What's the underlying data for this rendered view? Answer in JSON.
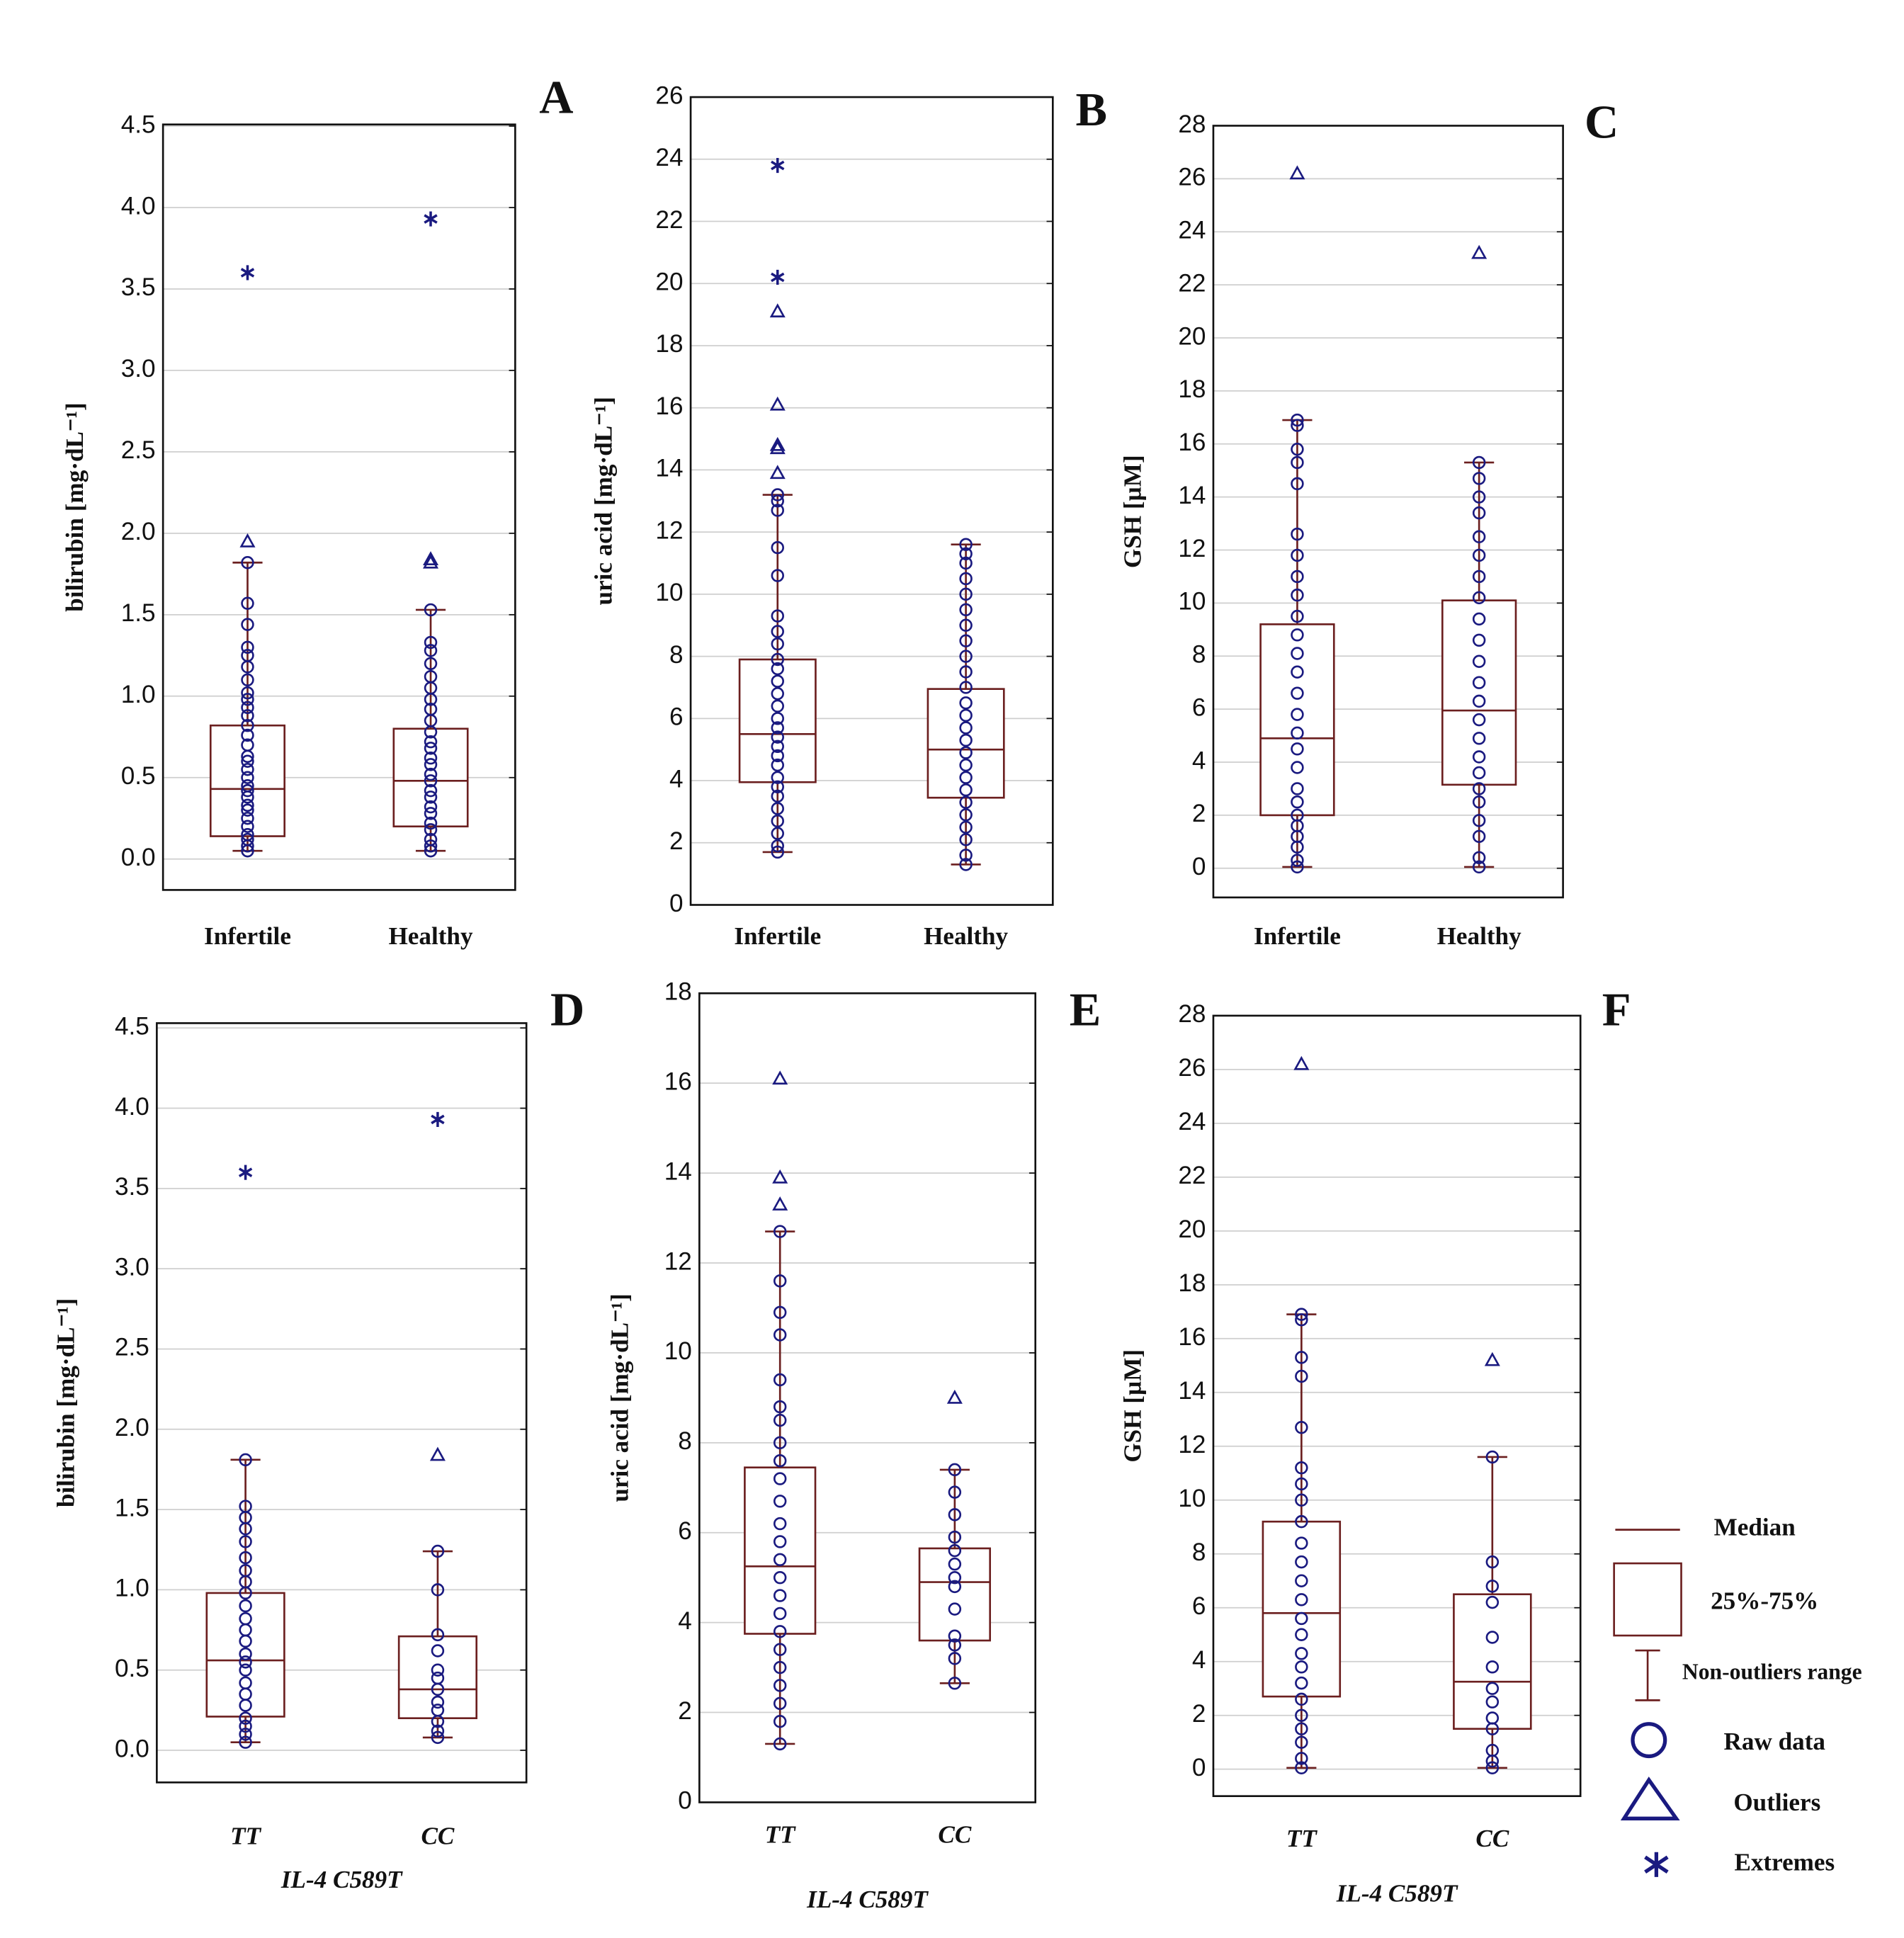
{
  "chart_data": [
    {
      "type": "box",
      "panel": "A",
      "ylabel": "bilirubin [mg·dL⁻¹]",
      "categories": [
        "Infertile",
        "Healthy"
      ],
      "ylim": [
        -0.19,
        4.51
      ],
      "yticks": [
        {
          "value": 0,
          "label": "0.0"
        },
        {
          "value": 0.5,
          "label": "0.5"
        },
        {
          "value": 1,
          "label": "1.0"
        },
        {
          "value": 1.5,
          "label": "1.5"
        },
        {
          "value": 2,
          "label": "2.0"
        },
        {
          "value": 2.5,
          "label": "2.5"
        },
        {
          "value": 3,
          "label": "3.0"
        },
        {
          "value": 3.5,
          "label": "3.5"
        },
        {
          "value": 4,
          "label": "4.0"
        },
        {
          "value": 4.5,
          "label": "4.5"
        }
      ],
      "grid": true,
      "box_color": "#6b1f1f",
      "point_color": "#1a1a80",
      "groups": [
        {
          "q1": 0.14,
          "median": 0.43,
          "q3": 0.82,
          "whisker_low": 0.05,
          "whisker_high": 1.82,
          "outliers": [
            1.95
          ],
          "extremes": [
            3.6
          ],
          "raw": [
            0.05,
            0.08,
            0.12,
            0.15,
            0.2,
            0.25,
            0.3,
            0.33,
            0.38,
            0.42,
            0.45,
            0.5,
            0.55,
            0.6,
            0.63,
            0.7,
            0.76,
            0.82,
            0.88,
            0.93,
            0.98,
            1.02,
            1.1,
            1.18,
            1.25,
            1.3,
            1.44,
            1.57,
            1.82
          ]
        },
        {
          "q1": 0.2,
          "median": 0.48,
          "q3": 0.8,
          "whisker_low": 0.05,
          "whisker_high": 1.53,
          "outliers": [
            1.82,
            1.84
          ],
          "extremes": [
            3.93
          ],
          "raw": [
            0.05,
            0.08,
            0.12,
            0.18,
            0.22,
            0.28,
            0.32,
            0.38,
            0.42,
            0.48,
            0.52,
            0.58,
            0.62,
            0.68,
            0.72,
            0.78,
            0.85,
            0.92,
            0.98,
            1.05,
            1.12,
            1.2,
            1.28,
            1.33,
            1.53
          ]
        }
      ]
    },
    {
      "type": "box",
      "panel": "B",
      "ylabel": "uric acid [mg·dL⁻¹]",
      "categories": [
        "Infertile",
        "Healthy"
      ],
      "ylim": [
        0,
        26
      ],
      "yticks": [
        0,
        2,
        4,
        6,
        8,
        10,
        12,
        14,
        16,
        18,
        20,
        22,
        24,
        26
      ],
      "grid": true,
      "box_color": "#6b1f1f",
      "point_color": "#1a1a80",
      "groups": [
        {
          "q1": 3.95,
          "median": 5.5,
          "q3": 7.9,
          "whisker_low": 1.7,
          "whisker_high": 13.2,
          "outliers": [
            19.1,
            16.1,
            14.8,
            14.7,
            13.9
          ],
          "extremes": [
            23.8,
            20.2
          ],
          "raw": [
            1.7,
            1.9,
            2.3,
            2.7,
            3.1,
            3.5,
            3.8,
            4.1,
            4.5,
            4.8,
            5.1,
            5.4,
            5.7,
            6.0,
            6.4,
            6.8,
            7.2,
            7.6,
            7.9,
            8.4,
            8.8,
            9.3,
            10.6,
            11.5,
            12.7,
            13.0,
            13.2
          ]
        },
        {
          "q1": 3.45,
          "median": 5.0,
          "q3": 6.95,
          "whisker_low": 1.3,
          "whisker_high": 11.6,
          "outliers": [],
          "extremes": [],
          "raw": [
            1.3,
            1.6,
            2.1,
            2.5,
            2.9,
            3.3,
            3.7,
            4.1,
            4.5,
            4.9,
            5.3,
            5.7,
            6.1,
            6.5,
            7.0,
            7.5,
            8.0,
            8.5,
            9.0,
            9.5,
            10.0,
            10.5,
            11.0,
            11.3,
            11.6
          ]
        }
      ]
    },
    {
      "type": "box",
      "panel": "C",
      "ylabel": "GSH [µM]",
      "categories": [
        "Infertile",
        "Healthy"
      ],
      "ylim": [
        -1.1,
        28
      ],
      "yticks": [
        0,
        2,
        4,
        6,
        8,
        10,
        12,
        14,
        16,
        18,
        20,
        22,
        24,
        26,
        28
      ],
      "grid": true,
      "box_color": "#6b1f1f",
      "point_color": "#1a1a80",
      "groups": [
        {
          "q1": 2.0,
          "median": 4.9,
          "q3": 9.2,
          "whisker_low": 0.05,
          "whisker_high": 16.9,
          "outliers": [
            26.2
          ],
          "extremes": [],
          "raw": [
            0.05,
            0.3,
            0.8,
            1.2,
            1.6,
            2.0,
            2.5,
            3.0,
            3.8,
            4.5,
            5.1,
            5.8,
            6.6,
            7.4,
            8.1,
            8.8,
            9.5,
            10.3,
            11.0,
            11.8,
            12.6,
            14.5,
            15.3,
            15.8,
            16.7,
            16.9
          ]
        },
        {
          "q1": 3.15,
          "median": 5.95,
          "q3": 10.1,
          "whisker_low": 0.05,
          "whisker_high": 15.3,
          "outliers": [
            23.2
          ],
          "extremes": [],
          "raw": [
            0.05,
            0.4,
            1.2,
            1.8,
            2.5,
            3.0,
            3.6,
            4.2,
            4.9,
            5.6,
            6.3,
            7.0,
            7.8,
            8.6,
            9.4,
            10.2,
            11.0,
            11.8,
            12.5,
            13.4,
            14.0,
            14.7,
            15.3
          ]
        }
      ]
    },
    {
      "type": "box",
      "panel": "D",
      "ylabel": "bilirubin [mg·dL⁻¹]",
      "categories": [
        "TT",
        "CC"
      ],
      "xlabel": "IL-4 C589T",
      "ylim": [
        -0.2,
        4.53
      ],
      "yticks": [
        {
          "value": 0,
          "label": "0.0"
        },
        {
          "value": 0.5,
          "label": "0.5"
        },
        {
          "value": 1,
          "label": "1.0"
        },
        {
          "value": 1.5,
          "label": "1.5"
        },
        {
          "value": 2,
          "label": "2.0"
        },
        {
          "value": 2.5,
          "label": "2.5"
        },
        {
          "value": 3,
          "label": "3.0"
        },
        {
          "value": 3.5,
          "label": "3.5"
        },
        {
          "value": 4,
          "label": "4.0"
        },
        {
          "value": 4.5,
          "label": "4.5"
        }
      ],
      "grid": true,
      "box_color": "#6b1f1f",
      "point_color": "#1a1a80",
      "groups": [
        {
          "q1": 0.21,
          "median": 0.56,
          "q3": 0.98,
          "whisker_low": 0.05,
          "whisker_high": 1.81,
          "outliers": [],
          "extremes": [
            3.6
          ],
          "raw": [
            0.05,
            0.1,
            0.15,
            0.2,
            0.28,
            0.35,
            0.42,
            0.5,
            0.55,
            0.6,
            0.68,
            0.75,
            0.82,
            0.9,
            0.98,
            1.05,
            1.12,
            1.2,
            1.3,
            1.38,
            1.45,
            1.52,
            1.81
          ]
        },
        {
          "q1": 0.2,
          "median": 0.38,
          "q3": 0.71,
          "whisker_low": 0.08,
          "whisker_high": 1.24,
          "outliers": [
            1.84
          ],
          "extremes": [
            3.93
          ],
          "raw": [
            0.08,
            0.12,
            0.18,
            0.25,
            0.3,
            0.38,
            0.45,
            0.5,
            0.62,
            0.72,
            1.0,
            1.24
          ]
        }
      ]
    },
    {
      "type": "box",
      "panel": "E",
      "ylabel": "uric acid [mg·dL⁻¹]",
      "categories": [
        "TT",
        "CC"
      ],
      "xlabel": "IL-4 C589T",
      "ylim": [
        0,
        18
      ],
      "yticks": [
        0,
        2,
        4,
        6,
        8,
        10,
        12,
        14,
        16,
        18
      ],
      "grid": true,
      "box_color": "#6b1f1f",
      "point_color": "#1a1a80",
      "groups": [
        {
          "q1": 3.75,
          "median": 5.25,
          "q3": 7.45,
          "whisker_low": 1.3,
          "whisker_high": 12.7,
          "outliers": [
            16.1,
            13.9,
            13.3
          ],
          "extremes": [],
          "raw": [
            1.3,
            1.8,
            2.2,
            2.6,
            3.0,
            3.4,
            3.8,
            4.2,
            4.6,
            5.0,
            5.4,
            5.8,
            6.2,
            6.7,
            7.2,
            7.6,
            8.0,
            8.5,
            8.8,
            9.4,
            10.4,
            10.9,
            11.6,
            12.7
          ]
        },
        {
          "q1": 3.6,
          "median": 4.9,
          "q3": 5.65,
          "whisker_low": 2.65,
          "whisker_high": 7.4,
          "outliers": [
            9.0
          ],
          "extremes": [],
          "raw": [
            2.65,
            3.2,
            3.5,
            3.7,
            4.3,
            4.8,
            5.0,
            5.3,
            5.6,
            5.9,
            6.4,
            6.9,
            7.4
          ]
        }
      ]
    },
    {
      "type": "box",
      "panel": "F",
      "ylabel": "GSH [µM]",
      "categories": [
        "TT",
        "CC"
      ],
      "xlabel": "IL-4 C589T",
      "ylim": [
        -1.0,
        28
      ],
      "yticks": [
        0,
        2,
        4,
        6,
        8,
        10,
        12,
        14,
        16,
        18,
        20,
        22,
        24,
        26,
        28
      ],
      "grid": true,
      "box_color": "#6b1f1f",
      "point_color": "#1a1a80",
      "groups": [
        {
          "q1": 2.7,
          "median": 5.8,
          "q3": 9.2,
          "whisker_low": 0.05,
          "whisker_high": 16.9,
          "outliers": [
            26.2
          ],
          "extremes": [],
          "raw": [
            0.05,
            0.4,
            1.0,
            1.5,
            2.0,
            2.6,
            3.2,
            3.8,
            4.3,
            5.0,
            5.6,
            6.3,
            7.0,
            7.7,
            8.4,
            9.2,
            10.0,
            10.6,
            11.2,
            12.7,
            14.6,
            15.3,
            16.7,
            16.9
          ]
        },
        {
          "q1": 1.5,
          "median": 3.25,
          "q3": 6.5,
          "whisker_low": 0.05,
          "whisker_high": 11.6,
          "outliers": [
            15.2
          ],
          "extremes": [],
          "raw": [
            0.05,
            0.3,
            0.7,
            1.5,
            1.9,
            2.5,
            3.0,
            3.8,
            4.9,
            6.2,
            6.8,
            7.7,
            11.6
          ]
        }
      ]
    }
  ],
  "legend": {
    "items": [
      "Median",
      "25%-75%",
      "Non-outliers range",
      "Raw data",
      "Outliers",
      "Extremes"
    ]
  }
}
